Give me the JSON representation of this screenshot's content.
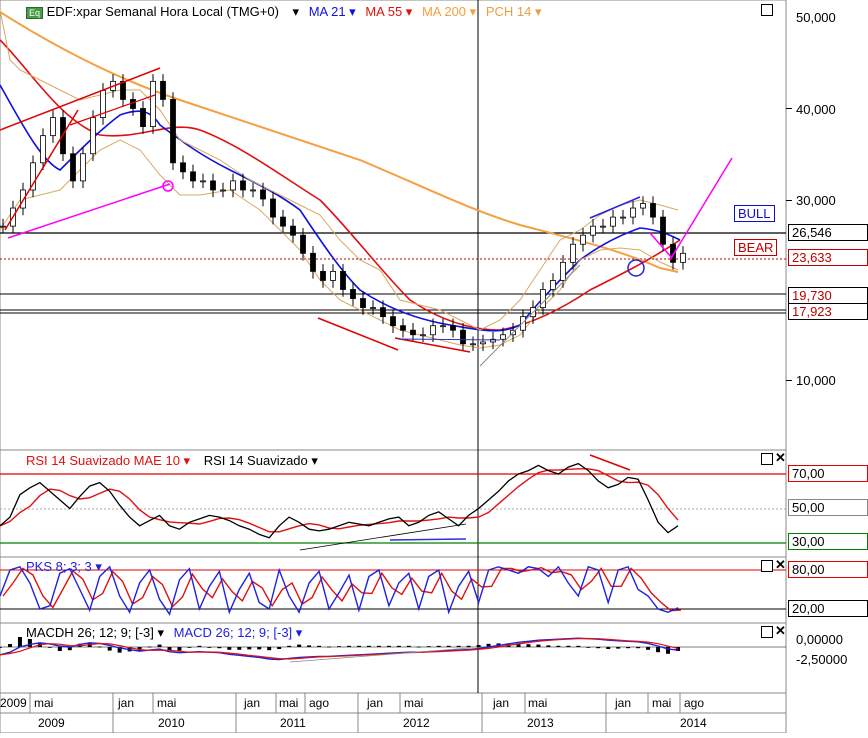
{
  "instrument": {
    "badge": "Eq",
    "title": "EDF:xpar Semanal Hora Local (TMG+0)"
  },
  "indicators_legend": [
    {
      "label": "MA 21",
      "color": "#1010e0"
    },
    {
      "label": "MA 55",
      "color": "#e01010"
    },
    {
      "label": "MA 200",
      "color": "#f5a040"
    },
    {
      "label": "PCH 14",
      "color": "#e8b870"
    }
  ],
  "price_axis": {
    "ticks": [
      "50,000",
      "40,000",
      "30,000",
      "10,000"
    ],
    "levels": [
      {
        "label": "26,546",
        "value": 26.546,
        "color": "#000000"
      },
      {
        "label": "23,633",
        "value": 23.633,
        "color": "#c00000"
      },
      {
        "label": "19,730",
        "value": 19.73,
        "color": "#000000"
      },
      {
        "label": "17,923",
        "value": 17.923,
        "color": "#000000"
      }
    ],
    "tags": [
      {
        "label": "BULL",
        "color": "#1010c0"
      },
      {
        "label": "BEAR",
        "color": "#c00000"
      }
    ]
  },
  "rsi_panel": {
    "title_a": "RSI 14 Suavizado MAE 10",
    "title_b": "RSI 14 Suavizado",
    "ticks": [
      "70,00",
      "50,00",
      "30,00"
    ]
  },
  "stoch_panel": {
    "title": "PKS 8; 3; 3",
    "ticks": [
      "80,00",
      "20,00"
    ]
  },
  "macd_panel": {
    "title_a": "MACDH 26; 12; 9; [-3]",
    "title_b": "MACD 26; 12; 9; [-3]",
    "ticks": [
      "0,00000",
      "-2,50000"
    ]
  },
  "time_axis": {
    "months": [
      "2009",
      "mai",
      "jan",
      "mai",
      "jan",
      "mai",
      "ago",
      "jan",
      "mai",
      "jan",
      "mai",
      "jan",
      "mai",
      "ago"
    ],
    "years": [
      "2009",
      "2010",
      "2011",
      "2012",
      "2013",
      "2014"
    ]
  },
  "chart_data": {
    "type": "line",
    "price_series": {
      "name": "EDF:xpar",
      "x": [
        0,
        10,
        20,
        30,
        40,
        50,
        60,
        70,
        80,
        90,
        100,
        110,
        120,
        130,
        140,
        150,
        160,
        170,
        180,
        190,
        200,
        210,
        220,
        230,
        240,
        250,
        260,
        270,
        280,
        290,
        300,
        310,
        320,
        330,
        340,
        350,
        360,
        370,
        380,
        390,
        400,
        410,
        420,
        430,
        440,
        450,
        460,
        470,
        480,
        490,
        500,
        510,
        520,
        530,
        540,
        550,
        560,
        570,
        580,
        590,
        600,
        610,
        620,
        630,
        640,
        650,
        660,
        670,
        680
      ],
      "close": [
        27,
        29,
        31,
        34,
        37,
        39,
        35,
        32,
        35,
        39,
        42,
        43,
        41,
        40,
        38,
        43,
        41,
        34,
        33,
        32,
        32,
        31,
        31,
        32,
        31,
        31,
        30,
        28,
        27,
        26,
        24,
        22,
        21,
        22,
        20,
        19,
        18,
        18,
        17,
        16,
        15.5,
        15,
        15,
        16,
        16,
        15.5,
        14,
        14,
        14.2,
        14.5,
        15,
        15.5,
        17,
        18,
        20,
        21,
        23,
        25,
        26,
        27,
        27,
        28,
        28,
        29,
        29.5,
        28,
        25,
        23,
        24
      ]
    },
    "rsi": {
      "ylim": [
        25,
        80
      ],
      "levels": [
        70,
        50,
        30
      ],
      "values": [
        40,
        45,
        58,
        62,
        65,
        60,
        55,
        50,
        57,
        63,
        65,
        60,
        52,
        45,
        40,
        43,
        46,
        40,
        38,
        42,
        44,
        46,
        45,
        43,
        40,
        38,
        35,
        33,
        40,
        45,
        42,
        38,
        37,
        38,
        40,
        42,
        41,
        40,
        42,
        44,
        45,
        40,
        42,
        46,
        48,
        44,
        40,
        46,
        50,
        55,
        60,
        66,
        70,
        72,
        75,
        72,
        70,
        74,
        76,
        72,
        66,
        62,
        64,
        68,
        67,
        55,
        42,
        36,
        40
      ]
    },
    "stochastic": {
      "ylim": [
        10,
        95
      ],
      "levels": [
        80,
        20
      ],
      "values": [
        40,
        80,
        85,
        60,
        20,
        25,
        75,
        82,
        50,
        18,
        70,
        85,
        40,
        15,
        60,
        80,
        35,
        12,
        65,
        82,
        20,
        55,
        78,
        15,
        50,
        75,
        30,
        20,
        80,
        40,
        15,
        60,
        78,
        20,
        45,
        72,
        18,
        70,
        80,
        25,
        60,
        75,
        20,
        70,
        80,
        15,
        55,
        78,
        30,
        80,
        85,
        80,
        75,
        85,
        82,
        70,
        85,
        60,
        40,
        85,
        80,
        30,
        80,
        85,
        50,
        40,
        20,
        15,
        22
      ]
    },
    "macd": {
      "ylim": [
        -4.5,
        2.5
      ],
      "values": [
        -1.5,
        -1,
        0,
        0.5,
        0.8,
        0.6,
        0.2,
        0.0,
        0.5,
        0.8,
        0.7,
        0.3,
        -0.2,
        -0.5,
        -0.8,
        -0.6,
        -0.4,
        -0.9,
        -1.1,
        -1.0,
        -0.9,
        -1.0,
        -1.1,
        -1.4,
        -1.6,
        -1.8,
        -2.0,
        -2.3,
        -2.4,
        -2.2,
        -2.0,
        -1.9,
        -1.8,
        -1.8,
        -1.7,
        -1.6,
        -1.5,
        -1.4,
        -1.3,
        -1.2,
        -1.1,
        -1.0,
        -1.0,
        -0.9,
        -0.8,
        -0.7,
        -0.6,
        -0.5,
        -0.3,
        0.0,
        0.3,
        0.6,
        0.9,
        1.1,
        1.3,
        1.4,
        1.5,
        1.6,
        1.7,
        1.6,
        1.5,
        1.3,
        1.2,
        1.1,
        1.0,
        0.7,
        0.2,
        -0.4,
        -0.6
      ]
    }
  }
}
